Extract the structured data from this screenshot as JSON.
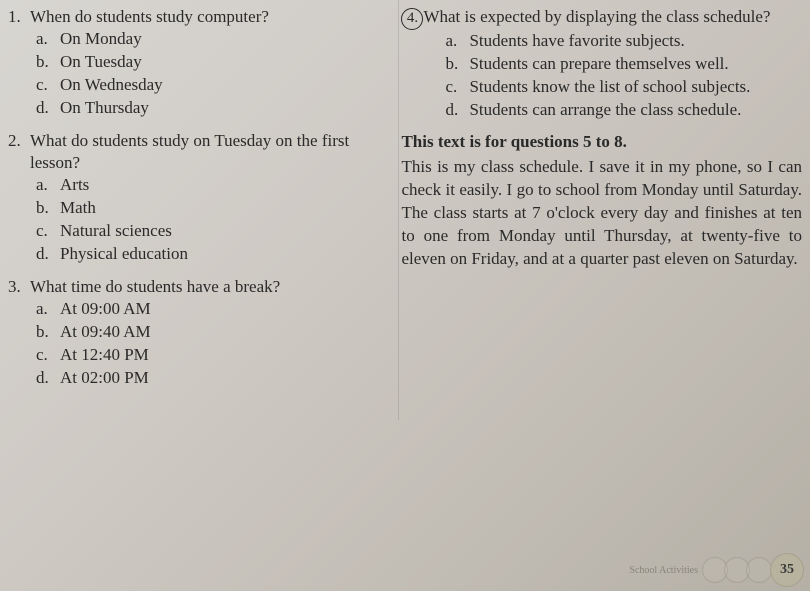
{
  "left": {
    "q1": {
      "num": "1.",
      "text": "When do students study computer?",
      "opts": [
        {
          "l": "a.",
          "t": "On Monday"
        },
        {
          "l": "b.",
          "t": "On Tuesday"
        },
        {
          "l": "c.",
          "t": "On Wednesday"
        },
        {
          "l": "d.",
          "t": "On Thursday"
        }
      ]
    },
    "q2": {
      "num": "2.",
      "text": "What do students study on Tuesday on the first lesson?",
      "opts": [
        {
          "l": "a.",
          "t": "Arts"
        },
        {
          "l": "b.",
          "t": "Math"
        },
        {
          "l": "c.",
          "t": "Natural sciences"
        },
        {
          "l": "d.",
          "t": "Physical education"
        }
      ]
    },
    "q3": {
      "num": "3.",
      "text": "What time do students have a break?",
      "opts": [
        {
          "l": "a.",
          "t": "At 09:00 AM"
        },
        {
          "l": "b.",
          "t": "At 09:40 AM"
        },
        {
          "l": "c.",
          "t": "At 12:40 PM"
        },
        {
          "l": "d.",
          "t": "At 02:00 PM"
        }
      ]
    }
  },
  "right": {
    "q4": {
      "num": "4.",
      "text": "What is expected by displaying the class schedule?",
      "opts": [
        {
          "l": "a.",
          "t": "Students have favorite subjects."
        },
        {
          "l": "b.",
          "t": "Students can prepare themselves well."
        },
        {
          "l": "c.",
          "t": "Students know the list of school subjects."
        },
        {
          "l": "d.",
          "t": "Students can arrange the class schedule."
        }
      ]
    },
    "header": "This text is for questions 5 to 8.",
    "para": "This is my class schedule. I save it in my phone, so I can check it easily. I go to school from Monday until Saturday. The class starts at 7 o'clock every day and finishes at ten to one from Monday until Thursday, at twenty-five to eleven on Friday, and at a quarter past eleven on Saturday."
  },
  "footer": {
    "label": "School Activities",
    "page": "35"
  },
  "colors": {
    "text": "#2a2a2a",
    "bg_light": "#d8d6d2",
    "bg_dark": "#b5b0a6"
  }
}
